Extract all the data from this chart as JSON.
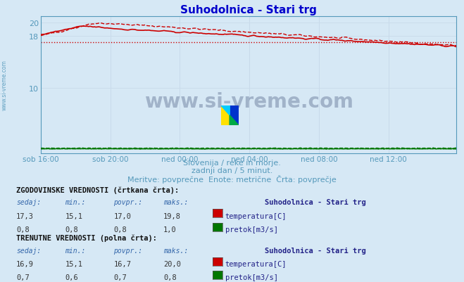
{
  "title": "Suhodolnica - Stari trg",
  "title_color": "#0000cc",
  "bg_color": "#d6e8f5",
  "grid_color": "#c8daea",
  "tick_color": "#5599bb",
  "temp_color": "#cc0000",
  "flow_color": "#007700",
  "avg_temp": 17.0,
  "avg_flow": 0.8,
  "x_tick_labels": [
    "sob 16:00",
    "sob 20:00",
    "ned 00:00",
    "ned 04:00",
    "ned 08:00",
    "ned 12:00"
  ],
  "x_tick_positions": [
    0,
    48,
    96,
    144,
    192,
    240
  ],
  "y_ticks": [
    10,
    18,
    20
  ],
  "ylim": [
    0,
    21
  ],
  "xlim": [
    0,
    287
  ],
  "subtitle1": "Slovenija / reke in morje.",
  "subtitle2": "zadnji dan / 5 minut.",
  "subtitle3": "Meritve: povprečne  Enote: metrične  Črta: povprečje",
  "subtitle_color": "#5599bb",
  "table_title1": "ZGODOVINSKE VREDNOSTI (črtkana črta):",
  "table_title2": "TRENUTNE VREDNOSTI (polna črta):",
  "col_headers": [
    "sedaj:",
    "min.:",
    "povpr.:",
    "maks.:"
  ],
  "hist_temp_row": [
    "17,3",
    "15,1",
    "17,0",
    "19,8"
  ],
  "hist_flow_row": [
    "0,8",
    "0,8",
    "0,8",
    "1,0"
  ],
  "curr_temp_row": [
    "16,9",
    "15,1",
    "16,7",
    "20,0"
  ],
  "curr_flow_row": [
    "0,7",
    "0,6",
    "0,7",
    "0,8"
  ],
  "station_name": "Suhodolnica - Stari trg",
  "temp_label": "temperatura[C]",
  "flow_label": "pretok[m3/s]",
  "side_label": "www.si-vreme.com",
  "watermark": "www.si-vreme.com",
  "n_points": 288,
  "bold_color": "#222288",
  "header_italic_color": "#3366aa",
  "data_color": "#333333"
}
